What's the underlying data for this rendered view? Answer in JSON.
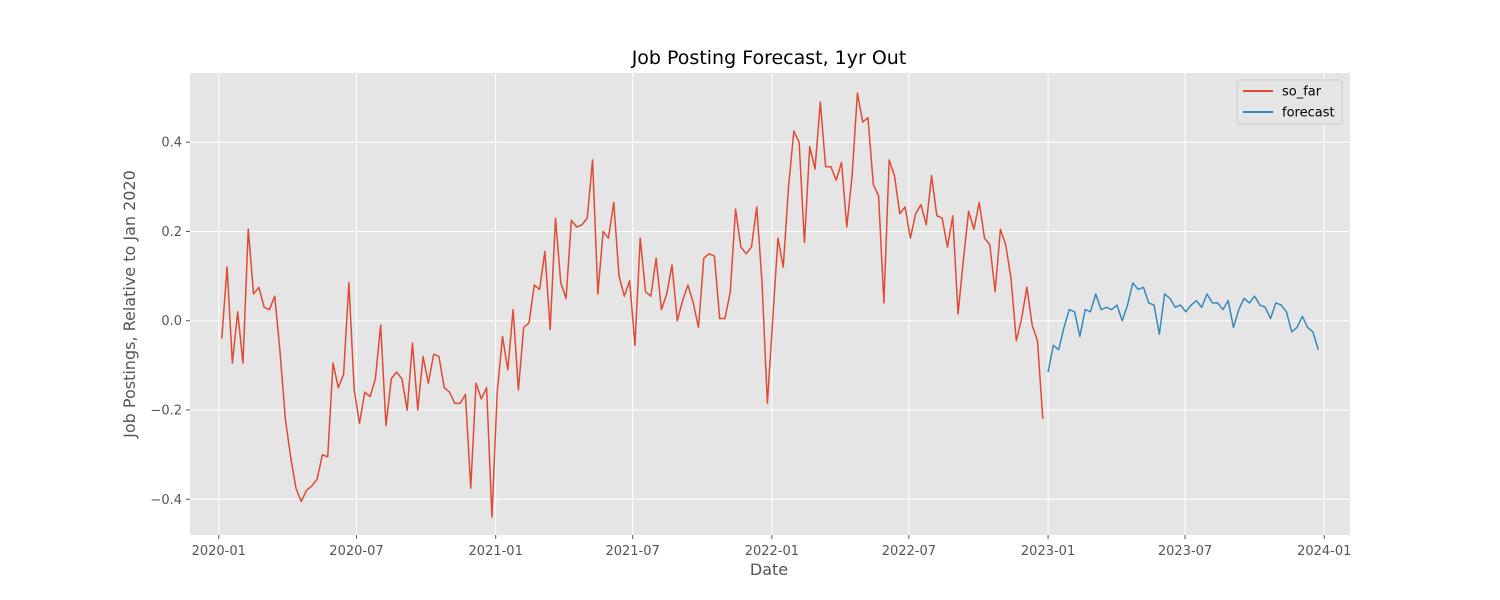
{
  "chart_data": {
    "type": "line",
    "title": "Job Posting Forecast, 1yr Out",
    "xlabel": "Date",
    "ylabel": "Job Postings, Relative to Jan 2020",
    "xlim": [
      "2019-11-24",
      "2024-02-04"
    ],
    "ylim": [
      -0.48,
      0.555
    ],
    "x_ticks": [
      {
        "date": "2020-01-01",
        "label": "2020-01"
      },
      {
        "date": "2020-07-01",
        "label": "2020-07"
      },
      {
        "date": "2021-01-01",
        "label": "2021-01"
      },
      {
        "date": "2021-07-01",
        "label": "2021-07"
      },
      {
        "date": "2022-01-01",
        "label": "2022-01"
      },
      {
        "date": "2022-07-01",
        "label": "2022-07"
      },
      {
        "date": "2023-01-01",
        "label": "2023-01"
      },
      {
        "date": "2023-07-01",
        "label": "2023-07"
      },
      {
        "date": "2024-01-01",
        "label": "2024-01"
      }
    ],
    "y_ticks": [
      {
        "value": -0.4,
        "label": "−0.4"
      },
      {
        "value": -0.2,
        "label": "−0.2"
      },
      {
        "value": 0.0,
        "label": "0.0"
      },
      {
        "value": 0.2,
        "label": "0.2"
      },
      {
        "value": 0.4,
        "label": "0.4"
      }
    ],
    "grid": true,
    "legend_position": "top-right",
    "colors": {
      "background": "#e5e5e5",
      "grid": "#ffffff",
      "so_far": "#e24a33",
      "forecast": "#348abd"
    },
    "series": [
      {
        "name": "so_far",
        "start": "2020-01-05",
        "step_days": 7,
        "values": [
          -0.04,
          0.12,
          -0.095,
          0.02,
          -0.095,
          0.205,
          0.06,
          0.075,
          0.03,
          0.025,
          0.055,
          -0.07,
          -0.22,
          -0.305,
          -0.375,
          -0.405,
          -0.38,
          -0.37,
          -0.355,
          -0.3,
          -0.305,
          -0.095,
          -0.15,
          -0.12,
          0.085,
          -0.155,
          -0.23,
          -0.16,
          -0.17,
          -0.13,
          -0.01,
          -0.235,
          -0.13,
          -0.115,
          -0.13,
          -0.2,
          -0.05,
          -0.2,
          -0.08,
          -0.14,
          -0.075,
          -0.08,
          -0.15,
          -0.16,
          -0.185,
          -0.185,
          -0.165,
          -0.375,
          -0.14,
          -0.175,
          -0.15,
          -0.44,
          -0.16,
          -0.035,
          -0.11,
          0.025,
          -0.155,
          -0.015,
          -0.005,
          0.08,
          0.07,
          0.155,
          -0.02,
          0.23,
          0.085,
          0.05,
          0.225,
          0.21,
          0.215,
          0.23,
          0.36,
          0.06,
          0.2,
          0.185,
          0.265,
          0.1,
          0.055,
          0.09,
          -0.055,
          0.185,
          0.065,
          0.055,
          0.14,
          0.025,
          0.06,
          0.125,
          0.0,
          0.045,
          0.08,
          0.04,
          -0.015,
          0.14,
          0.15,
          0.145,
          0.005,
          0.005,
          0.065,
          0.25,
          0.165,
          0.15,
          0.165,
          0.255,
          0.085,
          -0.185,
          0.0,
          0.185,
          0.12,
          0.3,
          0.425,
          0.4,
          0.175,
          0.39,
          0.34,
          0.49,
          0.345,
          0.345,
          0.315,
          0.355,
          0.21,
          0.325,
          0.51,
          0.445,
          0.455,
          0.305,
          0.28,
          0.04,
          0.36,
          0.325,
          0.24,
          0.255,
          0.185,
          0.24,
          0.26,
          0.215,
          0.325,
          0.235,
          0.23,
          0.165,
          0.235,
          0.015,
          0.135,
          0.245,
          0.205,
          0.265,
          0.185,
          0.17,
          0.065,
          0.205,
          0.17,
          0.095,
          -0.045,
          0.005,
          0.075,
          -0.01,
          -0.045,
          -0.22
        ]
      },
      {
        "name": "forecast",
        "start": "2023-01-01",
        "step_days": 7,
        "values": [
          -0.115,
          -0.055,
          -0.065,
          -0.015,
          0.025,
          0.02,
          -0.035,
          0.025,
          0.02,
          0.06,
          0.025,
          0.03,
          0.025,
          0.035,
          0.0,
          0.035,
          0.085,
          0.07,
          0.075,
          0.04,
          0.035,
          -0.03,
          0.06,
          0.05,
          0.03,
          0.035,
          0.02,
          0.035,
          0.045,
          0.03,
          0.06,
          0.04,
          0.04,
          0.025,
          0.045,
          -0.015,
          0.025,
          0.05,
          0.04,
          0.055,
          0.035,
          0.03,
          0.005,
          0.04,
          0.035,
          0.02,
          -0.025,
          -0.015,
          0.01,
          -0.015,
          -0.025,
          -0.065
        ]
      }
    ]
  }
}
